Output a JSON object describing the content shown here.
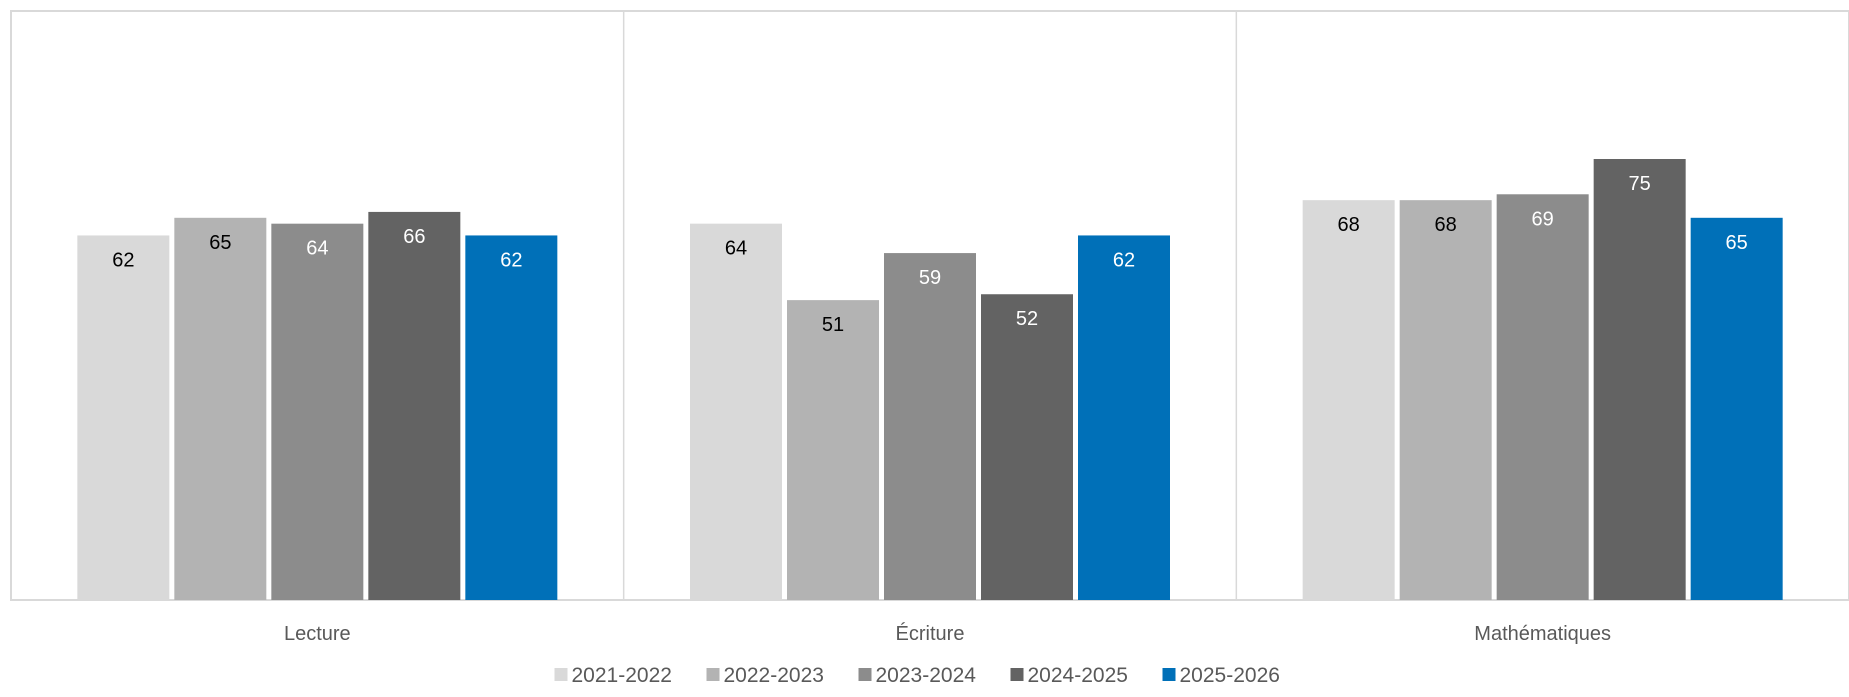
{
  "chart_data": {
    "type": "bar",
    "title": "",
    "xlabel": "",
    "ylabel": "",
    "ylim": [
      0,
      100
    ],
    "grid": false,
    "legend_position": "bottom",
    "categories": [
      "Lecture",
      "Écriture",
      "Mathématiques"
    ],
    "series": [
      {
        "name": "2021-2022",
        "color": "#d9d9d9",
        "label_color": "#000000",
        "values": [
          62,
          64,
          68
        ]
      },
      {
        "name": "2022-2023",
        "color": "#b3b3b3",
        "label_color": "#000000",
        "values": [
          65,
          51,
          68
        ]
      },
      {
        "name": "2023-2024",
        "color": "#8c8c8c",
        "label_color": "#ffffff",
        "values": [
          64,
          59,
          69
        ]
      },
      {
        "name": "2024-2025",
        "color": "#636363",
        "label_color": "#ffffff",
        "values": [
          66,
          52,
          75
        ]
      },
      {
        "name": "2025-2026",
        "color": "#0070b8",
        "label_color": "#ffffff",
        "values": [
          62,
          62,
          65
        ]
      }
    ]
  }
}
